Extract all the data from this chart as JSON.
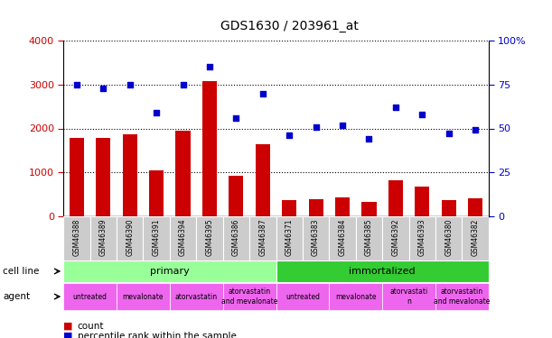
{
  "title": "GDS1630 / 203961_at",
  "samples": [
    "GSM46388",
    "GSM46389",
    "GSM46390",
    "GSM46391",
    "GSM46394",
    "GSM46395",
    "GSM46386",
    "GSM46387",
    "GSM46371",
    "GSM46383",
    "GSM46384",
    "GSM46385",
    "GSM46392",
    "GSM46393",
    "GSM46380",
    "GSM46382"
  ],
  "counts": [
    1780,
    1790,
    1860,
    1040,
    1940,
    3080,
    930,
    1640,
    370,
    380,
    430,
    330,
    830,
    680,
    360,
    410
  ],
  "percentile_ranks": [
    75,
    73,
    75,
    59,
    75,
    85,
    56,
    70,
    46,
    51,
    52,
    44,
    62,
    58,
    47,
    49
  ],
  "bar_color": "#cc0000",
  "dot_color": "#0000cc",
  "ylim_left": [
    0,
    4000
  ],
  "ylim_right": [
    0,
    100
  ],
  "yticks_left": [
    0,
    1000,
    2000,
    3000,
    4000
  ],
  "yticks_right": [
    0,
    25,
    50,
    75,
    100
  ],
  "ytick_labels_left": [
    "0",
    "1000",
    "2000",
    "3000",
    "4000"
  ],
  "ytick_labels_right": [
    "0",
    "25",
    "50",
    "75",
    "100%"
  ],
  "cell_line_primary_color": "#99ff99",
  "cell_line_immortalized_color": "#33cc33",
  "agent_color": "#ee66ee",
  "xtick_bg_color": "#cccccc",
  "cell_line_row": [
    {
      "label": "primary",
      "start": 0,
      "end": 8
    },
    {
      "label": "immortalized",
      "start": 8,
      "end": 16
    }
  ],
  "agent_row": [
    {
      "label": "untreated",
      "start": 0,
      "end": 2
    },
    {
      "label": "mevalonate",
      "start": 2,
      "end": 4
    },
    {
      "label": "atorvastatin",
      "start": 4,
      "end": 6
    },
    {
      "label": "atorvastatin\nand mevalonate",
      "start": 6,
      "end": 8
    },
    {
      "label": "untreated",
      "start": 8,
      "end": 10
    },
    {
      "label": "mevalonate",
      "start": 10,
      "end": 12
    },
    {
      "label": "atorvastati\nn",
      "start": 12,
      "end": 14
    },
    {
      "label": "atorvastatin\nand mevalonate",
      "start": 14,
      "end": 16
    }
  ],
  "legend_count_color": "#cc0000",
  "legend_pct_color": "#0000cc",
  "cell_line_label": "cell line",
  "agent_label": "agent",
  "background_color": "#ffffff",
  "tick_label_color_left": "#cc0000",
  "tick_label_color_right": "#0000cc"
}
